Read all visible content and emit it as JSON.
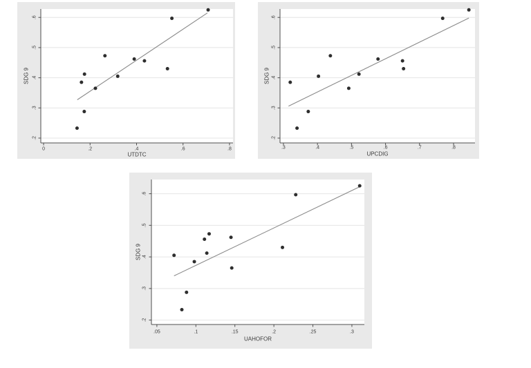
{
  "figure": {
    "description": "Three scatter plots of SDG 9 against UTDTC, UPCDIG and UAHOFOR with linear fit lines",
    "panel_names": [
      "scatter-utdtc",
      "scatter-upcdig",
      "scatter-uahofor"
    ]
  },
  "style": {
    "panel_bg": "#e9e9e9",
    "plot_bg": "#ffffff",
    "grid_color": "#e4e4e4",
    "axis_color": "#4f4f4f",
    "point_color": "#2e2e2e",
    "fit_line_color": "#8a8a8a",
    "text_color": "#3b3b3b"
  },
  "chart_data": [
    {
      "type": "scatter",
      "title": "",
      "xlabel": "UTDTC",
      "ylabel": "SDG 9",
      "xlim": [
        -0.012,
        0.815
      ],
      "ylim": [
        0.184,
        0.628
      ],
      "grid": "horizontal",
      "xticks": [
        {
          "v": 0.0,
          "label": "0"
        },
        {
          "v": 0.2,
          "label": ".2"
        },
        {
          "v": 0.4,
          "label": ".4"
        },
        {
          "v": 0.6,
          "label": ".6"
        },
        {
          "v": 0.8,
          "label": ".8"
        }
      ],
      "yticks": [
        {
          "v": 0.2,
          "label": ".2"
        },
        {
          "v": 0.3,
          "label": ".3"
        },
        {
          "v": 0.4,
          "label": ".4"
        },
        {
          "v": 0.5,
          "label": ".5"
        },
        {
          "v": 0.6,
          "label": ".6"
        }
      ],
      "points": [
        [
          0.144,
          0.233
        ],
        [
          0.163,
          0.385
        ],
        [
          0.175,
          0.288
        ],
        [
          0.176,
          0.412
        ],
        [
          0.223,
          0.365
        ],
        [
          0.264,
          0.473
        ],
        [
          0.319,
          0.405
        ],
        [
          0.39,
          0.462
        ],
        [
          0.434,
          0.456
        ],
        [
          0.533,
          0.43
        ],
        [
          0.552,
          0.597
        ],
        [
          0.708,
          0.625
        ]
      ],
      "fit_line": [
        [
          0.145,
          0.327
        ],
        [
          0.705,
          0.615
        ]
      ]
    },
    {
      "type": "scatter",
      "title": "",
      "xlabel": "UPCDIG",
      "ylabel": "SDG 9",
      "xlim": [
        0.29,
        0.863
      ],
      "ylim": [
        0.184,
        0.628
      ],
      "grid": "horizontal",
      "xticks": [
        {
          "v": 0.3,
          "label": ".3"
        },
        {
          "v": 0.4,
          "label": ".4"
        },
        {
          "v": 0.5,
          "label": ".5"
        },
        {
          "v": 0.6,
          "label": ".6"
        },
        {
          "v": 0.7,
          "label": ".7"
        },
        {
          "v": 0.8,
          "label": ".8"
        }
      ],
      "yticks": [
        {
          "v": 0.2,
          "label": ".2"
        },
        {
          "v": 0.3,
          "label": ".3"
        },
        {
          "v": 0.4,
          "label": ".4"
        },
        {
          "v": 0.5,
          "label": ".5"
        },
        {
          "v": 0.6,
          "label": ".6"
        }
      ],
      "points": [
        [
          0.32,
          0.385
        ],
        [
          0.34,
          0.233
        ],
        [
          0.373,
          0.288
        ],
        [
          0.403,
          0.405
        ],
        [
          0.438,
          0.473
        ],
        [
          0.492,
          0.365
        ],
        [
          0.522,
          0.412
        ],
        [
          0.578,
          0.462
        ],
        [
          0.65,
          0.456
        ],
        [
          0.653,
          0.43
        ],
        [
          0.768,
          0.597
        ],
        [
          0.845,
          0.625
        ]
      ],
      "fit_line": [
        [
          0.315,
          0.306
        ],
        [
          0.845,
          0.598
        ]
      ]
    },
    {
      "type": "scatter",
      "title": "",
      "xlabel": "UAHOFOR",
      "ylabel": "SDG 9",
      "xlim": [
        0.043,
        0.316
      ],
      "ylim": [
        0.186,
        0.645
      ],
      "grid": "horizontal",
      "xticks": [
        {
          "v": 0.05,
          "label": ".05"
        },
        {
          "v": 0.1,
          "label": ".1"
        },
        {
          "v": 0.15,
          "label": ".15"
        },
        {
          "v": 0.2,
          "label": ".2"
        },
        {
          "v": 0.25,
          "label": ".25"
        },
        {
          "v": 0.3,
          "label": ".3"
        }
      ],
      "yticks": [
        {
          "v": 0.2,
          "label": ".2"
        },
        {
          "v": 0.3,
          "label": ".3"
        },
        {
          "v": 0.4,
          "label": ".4"
        },
        {
          "v": 0.5,
          "label": ".5"
        },
        {
          "v": 0.6,
          "label": ".6"
        }
      ],
      "points": [
        [
          0.072,
          0.405
        ],
        [
          0.082,
          0.233
        ],
        [
          0.088,
          0.288
        ],
        [
          0.098,
          0.385
        ],
        [
          0.111,
          0.456
        ],
        [
          0.114,
          0.412
        ],
        [
          0.117,
          0.473
        ],
        [
          0.145,
          0.462
        ],
        [
          0.146,
          0.365
        ],
        [
          0.211,
          0.43
        ],
        [
          0.228,
          0.597
        ],
        [
          0.31,
          0.625
        ]
      ],
      "fit_line": [
        [
          0.072,
          0.34
        ],
        [
          0.31,
          0.622
        ]
      ]
    }
  ]
}
